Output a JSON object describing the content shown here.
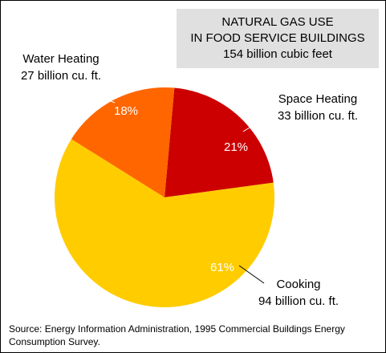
{
  "chart_data": {
    "type": "pie",
    "title_lines": [
      "NATURAL GAS USE",
      "IN FOOD SERVICE BUILDINGS",
      "154 billion cubic feet"
    ],
    "slices": [
      {
        "label": "Space Heating",
        "sublabel": "33 billion cu. ft.",
        "percent_label": "21%",
        "value": 33,
        "color": "#cc0000"
      },
      {
        "label": "Cooking",
        "sublabel": "94 billion cu. ft.",
        "percent_label": "61%",
        "value": 94,
        "color": "#ffcc00"
      },
      {
        "label": "Water Heating",
        "sublabel": "27 billion cu. ft.",
        "percent_label": "18%",
        "value": 27,
        "color": "#ff6600"
      }
    ]
  },
  "source": {
    "line1": "Source:  Energy Information Administration, 1995 Commercial Buildings Energy",
    "line2": "Consumption Survey."
  }
}
